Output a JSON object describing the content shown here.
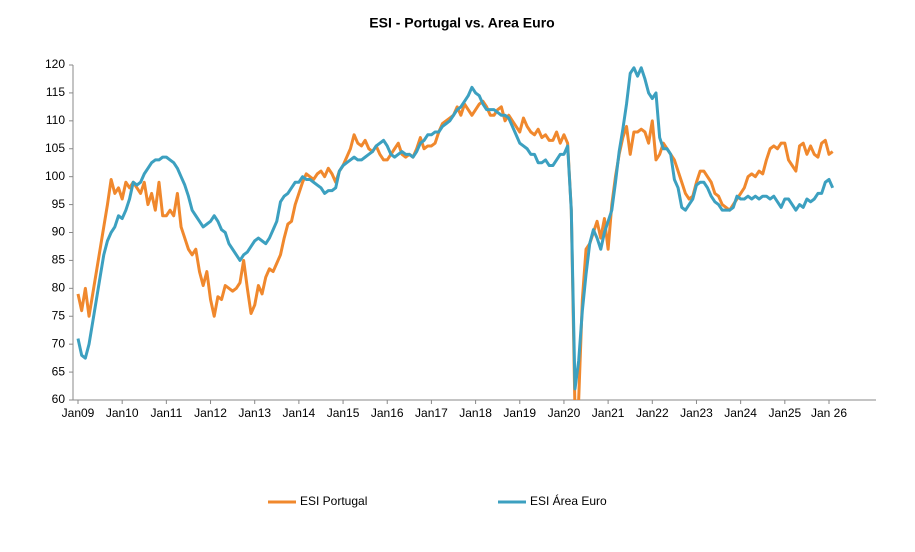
{
  "chart_data": {
    "type": "line",
    "title": "ESI  - Portugal vs. Area Euro",
    "categories": [
      "Jan09",
      null,
      null,
      null,
      null,
      null,
      null,
      null,
      null,
      null,
      null,
      null,
      "Jan10",
      null,
      null,
      null,
      null,
      null,
      null,
      null,
      null,
      null,
      null,
      null,
      "Jan11",
      null,
      null,
      null,
      null,
      null,
      null,
      null,
      null,
      null,
      null,
      null,
      "Jan12",
      null,
      null,
      null,
      null,
      null,
      null,
      null,
      null,
      null,
      null,
      null,
      "Jan13",
      null,
      null,
      null,
      null,
      null,
      null,
      null,
      null,
      null,
      null,
      null,
      "Jan14",
      null,
      null,
      null,
      null,
      null,
      null,
      null,
      null,
      null,
      null,
      null,
      "Jan15",
      null,
      null,
      null,
      null,
      null,
      null,
      null,
      null,
      null,
      null,
      null,
      "Jan16",
      null,
      null,
      null,
      null,
      null,
      null,
      null,
      null,
      null,
      null,
      null,
      "Jan17",
      null,
      null,
      null,
      null,
      null,
      null,
      null,
      null,
      null,
      null,
      null,
      "Jan18",
      null,
      null,
      null,
      null,
      null,
      null,
      null,
      null,
      null,
      null,
      null,
      "Jan19",
      null,
      null,
      null,
      null,
      null,
      null,
      null,
      null,
      null,
      null,
      null,
      "Jan20",
      null,
      null,
      null,
      null,
      null,
      null,
      null,
      null,
      null,
      null,
      null,
      "Jan21",
      null,
      null,
      null,
      null,
      null,
      null,
      null,
      null,
      null,
      null,
      null,
      "Jan22",
      null,
      null,
      null,
      null,
      null,
      null,
      null,
      null,
      null,
      null,
      null,
      "Jan23",
      null,
      null,
      null,
      null,
      null,
      null,
      null,
      null,
      null,
      null,
      null,
      "Jan24",
      null,
      null,
      null,
      null,
      null,
      null,
      null,
      null,
      null,
      null,
      null,
      "Jan25",
      null,
      null,
      null,
      null,
      null,
      null,
      null,
      null,
      null,
      null,
      null,
      "Jan 26",
      null
    ],
    "series": [
      {
        "name": "ESI Portugal",
        "color": "#f0882d",
        "values": [
          79,
          76,
          80,
          75,
          79,
          83,
          87,
          91,
          95,
          99.5,
          97,
          98,
          96,
          99,
          98,
          99,
          98,
          97,
          99,
          95,
          97,
          94,
          99,
          93,
          93,
          94,
          93,
          97,
          91,
          89,
          87,
          86,
          87,
          83,
          80.5,
          83,
          78,
          75,
          78.5,
          78,
          80.5,
          80,
          79.5,
          80,
          81,
          85,
          80,
          75.5,
          77,
          80.5,
          79,
          82,
          83.5,
          83,
          84.5,
          86,
          89,
          91.5,
          92,
          95,
          97,
          99,
          100.5,
          100,
          99.5,
          100.5,
          101,
          100,
          101.5,
          100.5,
          99,
          101,
          102,
          103.5,
          105,
          107.5,
          106,
          105.5,
          106.5,
          105,
          104.5,
          105.5,
          104,
          103,
          103,
          104,
          105,
          106,
          104,
          103.5,
          104,
          103.5,
          105,
          107,
          105,
          105.5,
          105.5,
          106,
          108,
          109.5,
          110,
          110.5,
          111,
          112.5,
          111,
          113,
          112,
          111,
          112,
          113,
          113.5,
          112.5,
          111,
          111,
          112,
          112.5,
          110,
          111,
          110,
          109,
          108,
          110.5,
          109,
          108,
          107.5,
          108.5,
          107,
          107.5,
          106.5,
          106.5,
          108,
          106,
          107.5,
          106,
          94,
          58,
          60,
          78,
          87,
          88,
          90,
          92,
          89,
          92.5,
          87,
          95,
          100,
          104,
          107,
          109,
          104,
          108,
          108,
          108.5,
          108,
          106,
          110,
          103,
          104,
          106,
          105,
          104,
          103,
          101,
          99,
          97,
          96,
          96.5,
          99,
          101,
          101,
          100,
          99,
          97,
          96.5,
          95,
          94.5,
          94,
          95,
          96,
          97,
          98,
          100,
          100.5,
          100,
          101,
          100.5,
          103,
          105,
          105.5,
          105,
          106,
          106,
          103,
          102,
          101,
          105.5,
          106,
          104,
          105.5,
          104,
          103.5,
          106,
          106.5,
          104,
          104.5
        ]
      },
      {
        "name": "ESI Área Euro",
        "color": "#3ca0c0",
        "values": [
          71,
          68,
          67.5,
          70,
          74,
          78,
          82,
          86,
          88.5,
          90,
          91,
          93,
          92.5,
          94,
          96,
          99,
          98.5,
          99,
          100.5,
          101.5,
          102.5,
          103,
          103,
          103.5,
          103.5,
          103,
          102.5,
          101.5,
          100,
          98.5,
          96.5,
          94,
          93,
          92,
          91,
          91.5,
          92,
          93,
          92,
          90.5,
          90,
          88,
          87,
          86,
          85,
          86,
          86.5,
          87.5,
          88.5,
          89,
          88.5,
          88,
          89,
          90.5,
          92,
          95.5,
          96.5,
          97,
          98,
          99,
          99,
          100,
          99.5,
          99.5,
          99,
          98.5,
          98,
          97,
          97.5,
          97.5,
          98,
          101,
          102,
          102.5,
          103,
          103.5,
          103,
          103,
          103.5,
          104,
          104.5,
          105.5,
          106,
          106.5,
          105.5,
          104,
          103.5,
          104,
          104.5,
          104,
          104,
          103.5,
          104.5,
          106,
          106.5,
          107.5,
          107.5,
          108,
          108,
          109,
          109.5,
          110,
          111,
          112,
          112.5,
          113.5,
          114.5,
          116,
          115,
          114.5,
          113,
          112,
          112,
          112,
          111.5,
          111,
          111,
          110.5,
          109,
          107.5,
          106,
          105.5,
          105,
          104,
          104,
          102.5,
          102.5,
          103,
          102,
          102,
          103,
          104,
          104,
          105.5,
          94,
          62,
          67,
          76,
          82.5,
          88,
          90.5,
          89,
          87,
          90,
          92,
          94,
          99,
          104.5,
          108.5,
          113,
          118.5,
          119.5,
          118,
          119.5,
          117.5,
          115,
          114,
          115,
          107,
          105,
          105,
          104,
          99.5,
          98,
          94.5,
          94,
          95,
          96,
          98.5,
          99,
          99,
          98,
          96.5,
          95.5,
          95,
          94,
          94,
          94,
          94.5,
          96.5,
          96,
          96,
          96.5,
          96,
          96.5,
          96,
          96.5,
          96.5,
          96,
          96.5,
          95.5,
          94.5,
          96,
          96,
          95,
          94,
          95,
          94.5,
          96,
          95.5,
          96,
          97,
          97,
          99,
          99.5,
          98
        ]
      }
    ],
    "ylim": [
      60,
      120
    ],
    "yticks": [
      60,
      65,
      70,
      75,
      80,
      85,
      90,
      95,
      100,
      105,
      110,
      115,
      120
    ],
    "grid": false,
    "legend": "bottom"
  }
}
